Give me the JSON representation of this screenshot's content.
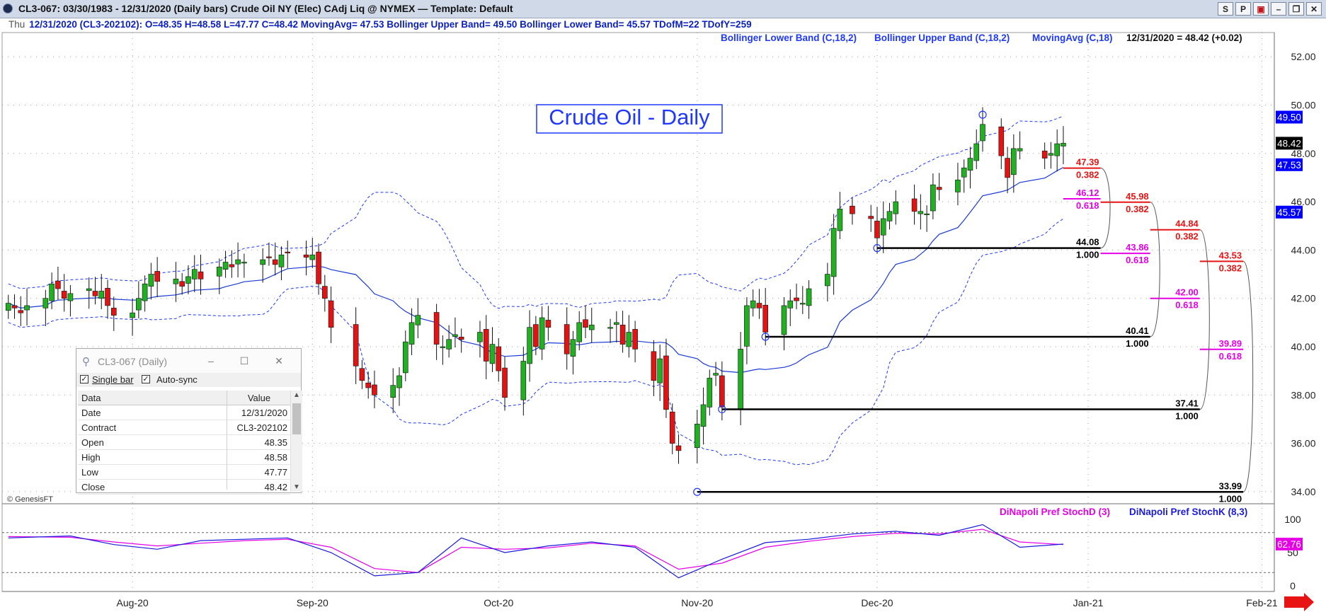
{
  "window": {
    "title": "CL3-067:  03/30/1983 - 12/31/2020  (Daily bars)   Crude Oil NY (Elec) CAdj Liq @ NYMEX  —  Template: Default",
    "buttons": [
      "S",
      "P",
      "▣",
      "–",
      "❐",
      "✕"
    ]
  },
  "infobar": {
    "day": "Thu",
    "text": "12/31/2020 (CL3-202102):  O=48.35  H=48.58  L=47.77  C=48.42  MovingAvg= 47.53  Bollinger Upper Band= 49.50  Bollinger Lower Band= 45.57  TDofM=22  TDofY=259"
  },
  "chart_data": {
    "type": "candlestick",
    "title": "Crude Oil - Daily",
    "watermark": "© GenesisFT",
    "legend_main": [
      "Bollinger Lower Band (C,18,2)",
      "Bollinger Upper Band (C,18,2)",
      "MovingAvg (C,18)"
    ],
    "last_value_text": "12/31/2020 = 48.42 (+0.02)",
    "y_range": [
      33.5,
      53.0
    ],
    "y_ticks": [
      "52.00",
      "50.00",
      "48.00",
      "46.00",
      "44.00",
      "42.00",
      "40.00",
      "38.00",
      "36.00",
      "34.00"
    ],
    "x_range": [
      "2020-07-13",
      "2021-02-03"
    ],
    "x_ticks": [
      {
        "label": "Aug-20",
        "date": "2020-08-03"
      },
      {
        "label": "Sep-20",
        "date": "2020-09-01"
      },
      {
        "label": "Oct-20",
        "date": "2020-10-01"
      },
      {
        "label": "Nov-20",
        "date": "2020-11-02"
      },
      {
        "label": "Dec-20",
        "date": "2020-12-01"
      },
      {
        "label": "Jan-21",
        "date": "2021-01-04"
      },
      {
        "label": "Feb-21",
        "date": "2021-02-01"
      }
    ],
    "axis_badges": [
      {
        "text": "49.50",
        "value": 49.5,
        "bg": "#0000ff",
        "fg": "#ffffff"
      },
      {
        "text": "48.42",
        "value": 48.42,
        "bg": "#000000",
        "fg": "#ffffff"
      },
      {
        "text": "47.53",
        "value": 47.53,
        "bg": "#0000ff",
        "fg": "#ffffff"
      },
      {
        "text": "45.57",
        "value": 45.57,
        "bg": "#0000ff",
        "fg": "#ffffff"
      }
    ],
    "close_series": [
      [
        "2020-07-14",
        41.8
      ],
      [
        "2020-07-15",
        41.6
      ],
      [
        "2020-07-16",
        41.4
      ],
      [
        "2020-07-17",
        41.7
      ],
      [
        "2020-07-20",
        42.0
      ],
      [
        "2020-07-21",
        42.6
      ],
      [
        "2020-07-22",
        42.4
      ],
      [
        "2020-07-23",
        42.0
      ],
      [
        "2020-07-24",
        42.2
      ],
      [
        "2020-07-27",
        42.4
      ],
      [
        "2020-07-28",
        42.1
      ],
      [
        "2020-07-29",
        42.3
      ],
      [
        "2020-07-30",
        41.7
      ],
      [
        "2020-07-31",
        41.3
      ],
      [
        "2020-08-03",
        41.4
      ],
      [
        "2020-08-04",
        42.0
      ],
      [
        "2020-08-05",
        42.6
      ],
      [
        "2020-08-06",
        43.0
      ],
      [
        "2020-08-07",
        42.7
      ],
      [
        "2020-08-10",
        42.8
      ],
      [
        "2020-08-11",
        42.5
      ],
      [
        "2020-08-12",
        42.9
      ],
      [
        "2020-08-13",
        43.2
      ],
      [
        "2020-08-14",
        42.8
      ],
      [
        "2020-08-17",
        43.3
      ],
      [
        "2020-08-18",
        43.5
      ],
      [
        "2020-08-19",
        43.3
      ],
      [
        "2020-08-20",
        43.6
      ],
      [
        "2020-08-21",
        43.5
      ],
      [
        "2020-08-24",
        43.6
      ],
      [
        "2020-08-25",
        43.7
      ],
      [
        "2020-08-26",
        43.4
      ],
      [
        "2020-08-27",
        43.8
      ],
      [
        "2020-08-28",
        43.9
      ],
      [
        "2020-08-31",
        43.7
      ],
      [
        "2020-09-01",
        43.8
      ],
      [
        "2020-09-02",
        42.6
      ],
      [
        "2020-09-03",
        42.0
      ],
      [
        "2020-09-04",
        40.8
      ],
      [
        "2020-09-08",
        39.2
      ],
      [
        "2020-09-09",
        38.6
      ],
      [
        "2020-09-10",
        38.3
      ],
      [
        "2020-09-11",
        38.0
      ],
      [
        "2020-09-14",
        38.4
      ],
      [
        "2020-09-15",
        38.8
      ],
      [
        "2020-09-16",
        40.2
      ],
      [
        "2020-09-17",
        41.0
      ],
      [
        "2020-09-18",
        41.3
      ],
      [
        "2020-09-21",
        40.1
      ],
      [
        "2020-09-22",
        40.0
      ],
      [
        "2020-09-23",
        40.3
      ],
      [
        "2020-09-24",
        40.5
      ],
      [
        "2020-09-25",
        40.3
      ],
      [
        "2020-09-28",
        40.6
      ],
      [
        "2020-09-29",
        39.4
      ],
      [
        "2020-09-30",
        40.1
      ],
      [
        "2020-10-01",
        39.0
      ],
      [
        "2020-10-02",
        37.9
      ],
      [
        "2020-10-05",
        39.4
      ],
      [
        "2020-10-06",
        40.8
      ],
      [
        "2020-10-07",
        40.0
      ],
      [
        "2020-10-08",
        41.2
      ],
      [
        "2020-10-09",
        40.8
      ],
      [
        "2020-10-12",
        39.7
      ],
      [
        "2020-10-13",
        40.3
      ],
      [
        "2020-10-14",
        41.0
      ],
      [
        "2020-10-15",
        40.8
      ],
      [
        "2020-10-16",
        40.9
      ],
      [
        "2020-10-19",
        40.8
      ],
      [
        "2020-10-20",
        41.0
      ],
      [
        "2020-10-21",
        40.1
      ],
      [
        "2020-10-22",
        40.6
      ],
      [
        "2020-10-23",
        39.9
      ],
      [
        "2020-10-26",
        38.6
      ],
      [
        "2020-10-27",
        39.5
      ],
      [
        "2020-10-28",
        37.4
      ],
      [
        "2020-10-29",
        36.0
      ],
      [
        "2020-10-30",
        35.7
      ],
      [
        "2020-11-02",
        36.8
      ],
      [
        "2020-11-03",
        37.6
      ],
      [
        "2020-11-04",
        38.7
      ],
      [
        "2020-11-05",
        38.9
      ],
      [
        "2020-11-06",
        37.5
      ],
      [
        "2020-11-09",
        39.9
      ],
      [
        "2020-11-10",
        41.7
      ],
      [
        "2020-11-11",
        41.9
      ],
      [
        "2020-11-12",
        41.6
      ],
      [
        "2020-11-13",
        40.6
      ],
      [
        "2020-11-16",
        41.7
      ],
      [
        "2020-11-17",
        41.9
      ],
      [
        "2020-11-18",
        41.9
      ],
      [
        "2020-11-19",
        41.8
      ],
      [
        "2020-11-20",
        42.4
      ],
      [
        "2020-11-23",
        43.0
      ],
      [
        "2020-11-24",
        44.9
      ],
      [
        "2020-11-25",
        45.7
      ],
      [
        "2020-11-27",
        45.5
      ],
      [
        "2020-11-30",
        45.3
      ],
      [
        "2020-12-01",
        44.5
      ],
      [
        "2020-12-02",
        45.3
      ],
      [
        "2020-12-03",
        45.6
      ],
      [
        "2020-12-04",
        46.0
      ],
      [
        "2020-12-07",
        45.6
      ],
      [
        "2020-12-08",
        45.6
      ],
      [
        "2020-12-09",
        45.5
      ],
      [
        "2020-12-10",
        46.7
      ],
      [
        "2020-12-11",
        46.5
      ],
      [
        "2020-12-14",
        46.9
      ],
      [
        "2020-12-15",
        47.4
      ],
      [
        "2020-12-16",
        47.8
      ],
      [
        "2020-12-17",
        48.4
      ],
      [
        "2020-12-18",
        49.2
      ],
      [
        "2020-12-21",
        47.9
      ],
      [
        "2020-12-22",
        47.0
      ],
      [
        "2020-12-23",
        48.2
      ],
      [
        "2020-12-24",
        48.2
      ],
      [
        "2020-12-28",
        47.8
      ],
      [
        "2020-12-29",
        48.0
      ],
      [
        "2020-12-30",
        48.4
      ],
      [
        "2020-12-31",
        48.42
      ]
    ],
    "fib_anchors": [
      {
        "date": "2020-12-18",
        "value": 49.6
      }
    ],
    "fib_levels": [
      {
        "start": "2020-12-31",
        "end": "2021-01-06",
        "value": 47.39,
        "label": "47.39",
        "sub": "0.382",
        "color": "#e81414"
      },
      {
        "start": "2020-12-31",
        "end": "2021-01-06",
        "value": 46.12,
        "label": "46.12",
        "sub": "0.618",
        "color": "#e600e6"
      },
      {
        "start": "2020-12-01",
        "end": "2021-01-06",
        "value": 44.08,
        "label": "44.08",
        "sub": "1.000",
        "color": "#000000"
      },
      {
        "start": "2021-01-06",
        "end": "2021-01-14",
        "value": 45.98,
        "label": "45.98",
        "sub": "0.382",
        "color": "#e81414"
      },
      {
        "start": "2021-01-06",
        "end": "2021-01-14",
        "value": 43.86,
        "label": "43.86",
        "sub": "0.618",
        "color": "#e600e6"
      },
      {
        "start": "2020-11-13",
        "end": "2021-01-14",
        "value": 40.41,
        "label": "40.41",
        "sub": "1.000",
        "color": "#000000"
      },
      {
        "start": "2021-01-14",
        "end": "2021-01-22",
        "value": 44.84,
        "label": "44.84",
        "sub": "0.382",
        "color": "#e81414"
      },
      {
        "start": "2021-01-14",
        "end": "2021-01-22",
        "value": 42.0,
        "label": "42.00",
        "sub": "0.618",
        "color": "#e600e6"
      },
      {
        "start": "2020-11-06",
        "end": "2021-01-22",
        "value": 37.41,
        "label": "37.41",
        "sub": "1.000",
        "color": "#000000"
      },
      {
        "start": "2021-01-22",
        "end": "2021-01-29",
        "value": 43.53,
        "label": "43.53",
        "sub": "0.382",
        "color": "#e81414"
      },
      {
        "start": "2021-01-22",
        "end": "2021-01-29",
        "value": 39.89,
        "label": "39.89",
        "sub": "0.618",
        "color": "#e600e6"
      },
      {
        "start": "2020-11-02",
        "end": "2021-01-29",
        "value": 33.99,
        "label": "33.99",
        "sub": "1.000",
        "color": "#000000"
      }
    ],
    "sub_panel": {
      "legend": [
        {
          "text": "DiNapoli Pref StochD (3)",
          "color": "#e600e6"
        },
        {
          "text": "DiNapoli Pref StochK (8,3)",
          "color": "#1a1adc"
        }
      ],
      "y_range": [
        0,
        100
      ],
      "y_ticks": [
        "100",
        "50",
        "0"
      ],
      "ref_lines": [
        80,
        20
      ],
      "badge": {
        "text": "62.76",
        "value": 62.76
      },
      "stoch_k": [
        [
          "2020-07-14",
          72
        ],
        [
          "2020-07-24",
          75
        ],
        [
          "2020-07-31",
          62
        ],
        [
          "2020-08-07",
          55
        ],
        [
          "2020-08-14",
          68
        ],
        [
          "2020-08-21",
          70
        ],
        [
          "2020-08-28",
          72
        ],
        [
          "2020-09-04",
          50
        ],
        [
          "2020-09-11",
          15
        ],
        [
          "2020-09-18",
          20
        ],
        [
          "2020-09-25",
          72
        ],
        [
          "2020-10-02",
          50
        ],
        [
          "2020-10-09",
          60
        ],
        [
          "2020-10-16",
          66
        ],
        [
          "2020-10-23",
          58
        ],
        [
          "2020-10-30",
          12
        ],
        [
          "2020-11-06",
          40
        ],
        [
          "2020-11-13",
          65
        ],
        [
          "2020-11-20",
          70
        ],
        [
          "2020-11-27",
          78
        ],
        [
          "2020-12-04",
          82
        ],
        [
          "2020-12-11",
          76
        ],
        [
          "2020-12-18",
          92
        ],
        [
          "2020-12-24",
          58
        ],
        [
          "2020-12-31",
          62.76
        ]
      ],
      "stoch_d": [
        [
          "2020-07-14",
          74
        ],
        [
          "2020-07-24",
          73
        ],
        [
          "2020-07-31",
          66
        ],
        [
          "2020-08-07",
          60
        ],
        [
          "2020-08-14",
          64
        ],
        [
          "2020-08-21",
          68
        ],
        [
          "2020-08-28",
          70
        ],
        [
          "2020-09-04",
          58
        ],
        [
          "2020-09-11",
          26
        ],
        [
          "2020-09-18",
          20
        ],
        [
          "2020-09-25",
          58
        ],
        [
          "2020-10-02",
          55
        ],
        [
          "2020-10-09",
          57
        ],
        [
          "2020-10-16",
          64
        ],
        [
          "2020-10-23",
          60
        ],
        [
          "2020-10-30",
          25
        ],
        [
          "2020-11-06",
          34
        ],
        [
          "2020-11-13",
          58
        ],
        [
          "2020-11-20",
          67
        ],
        [
          "2020-11-27",
          74
        ],
        [
          "2020-12-04",
          79
        ],
        [
          "2020-12-11",
          78
        ],
        [
          "2020-12-18",
          85
        ],
        [
          "2020-12-24",
          66
        ],
        [
          "2020-12-31",
          62
        ]
      ]
    },
    "colors": {
      "up": "#21b021",
      "down": "#e11414",
      "band": "#1f38ff",
      "ma": "#1a3ad6",
      "grid": "#9c9c9c"
    }
  },
  "detail_window": {
    "title": "CL3-067 (Daily)",
    "single_bar": "Single bar",
    "auto_sync": "Auto-sync",
    "col_data": "Data",
    "col_value": "Value",
    "rows": [
      {
        "name": "Date",
        "value": "12/31/2020"
      },
      {
        "name": "Contract",
        "value": "CL3-202102"
      },
      {
        "name": "Open",
        "value": "48.35"
      },
      {
        "name": "High",
        "value": "48.58"
      },
      {
        "name": "Low",
        "value": "47.77"
      },
      {
        "name": "Close",
        "value": "48.42"
      }
    ]
  }
}
